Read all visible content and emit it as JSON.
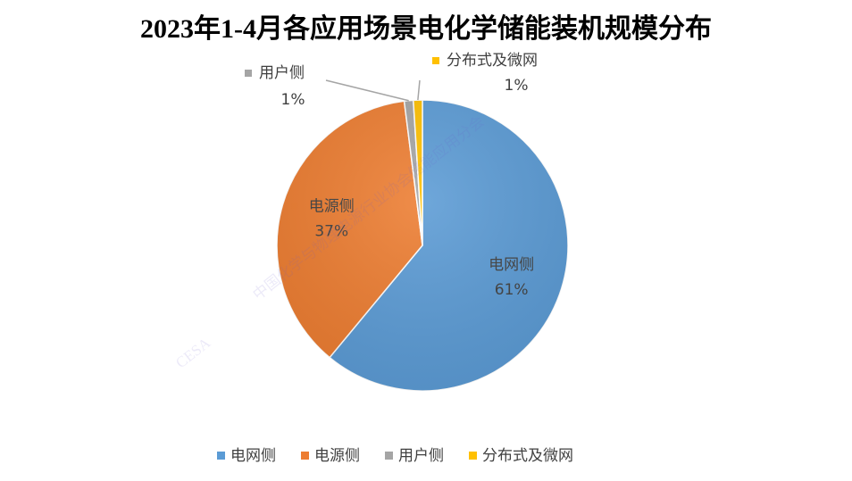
{
  "chart_data": {
    "type": "pie",
    "title": "2023年1-4月各应用场景电化学储能装机规模分布",
    "categories": [
      "电网侧",
      "电源侧",
      "用户侧",
      "分布式及微网"
    ],
    "values": [
      61,
      37,
      1,
      1
    ],
    "value_labels": [
      "61%",
      "37%",
      "1%",
      "1%"
    ],
    "colors": [
      "#5b9bd5",
      "#ed7d31",
      "#a5a5a5",
      "#ffc000"
    ],
    "legend": "bottom",
    "watermark": [
      "CESA",
      "中国化学与物理电源行业协会储能应用分会"
    ]
  }
}
